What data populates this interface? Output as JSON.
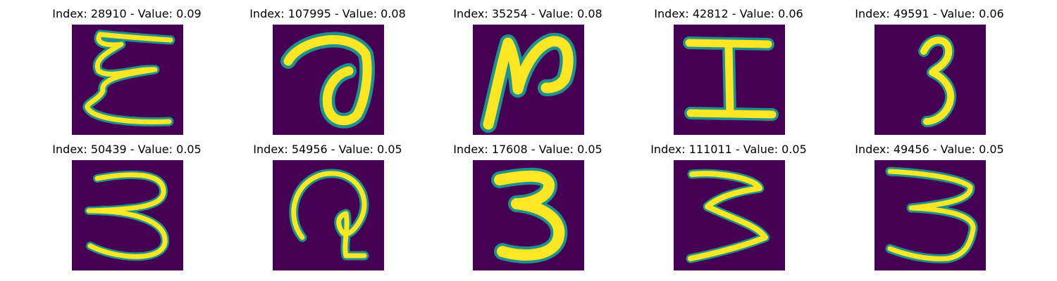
{
  "figure": {
    "panels": [
      {
        "title": "Index: 28910 - Value: 0.09",
        "glyph": "E"
      },
      {
        "title": "Index: 107995 - Value: 0.08",
        "glyph": "a"
      },
      {
        "title": "Index: 35254 - Value: 0.08",
        "glyph": "N"
      },
      {
        "title": "Index: 42812 - Value: 0.06",
        "glyph": "I"
      },
      {
        "title": "Index: 49591 - Value: 0.06",
        "glyph": "3"
      },
      {
        "title": "Index: 50439 - Value: 0.05",
        "glyph": "3"
      },
      {
        "title": "Index: 54956 - Value: 0.05",
        "glyph": "2"
      },
      {
        "title": "Index: 17608 - Value: 0.05",
        "glyph": "3"
      },
      {
        "title": "Index: 111011 - Value: 0.05",
        "glyph": "3"
      },
      {
        "title": "Index: 49456 - Value: 0.05",
        "glyph": "3"
      }
    ]
  },
  "colors": {
    "background": "#440154",
    "stroke_core": "#fde725",
    "stroke_edge": "#21918c",
    "stroke_mid": "#5ec962"
  }
}
